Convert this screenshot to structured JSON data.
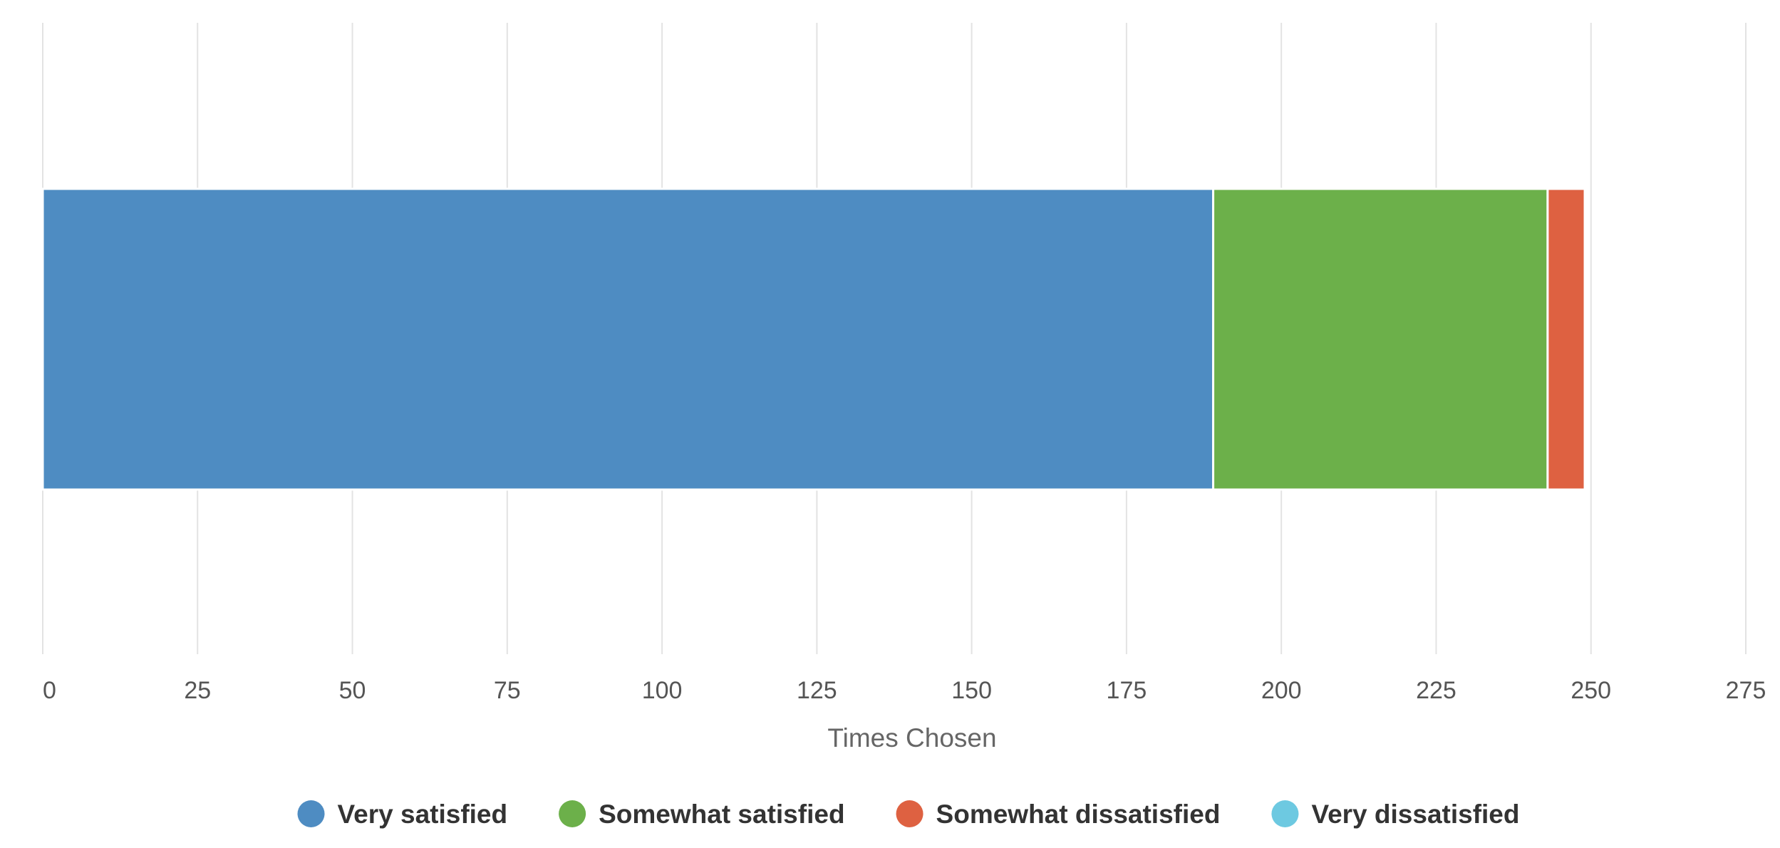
{
  "chart_data": {
    "type": "bar",
    "orientation": "horizontal",
    "stacked": true,
    "categories": [
      ""
    ],
    "series": [
      {
        "name": "Very satisfied",
        "values": [
          189
        ],
        "color": "#4E8CC2"
      },
      {
        "name": "Somewhat satisfied",
        "values": [
          54
        ],
        "color": "#6CB04A"
      },
      {
        "name": "Somewhat dissatisfied",
        "values": [
          6
        ],
        "color": "#DE6141"
      },
      {
        "name": "Very dissatisfied",
        "values": [
          0
        ],
        "color": "#6DC9E1"
      }
    ],
    "xlabel": "Times Chosen",
    "ylabel": "",
    "xlim": [
      0,
      275
    ],
    "xticks": [
      "0",
      "25",
      "50",
      "75",
      "100",
      "125",
      "150",
      "175",
      "200",
      "225",
      "250",
      "275"
    ],
    "grid": true,
    "legend_position": "bottom"
  }
}
